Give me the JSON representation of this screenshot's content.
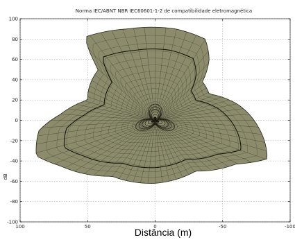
{
  "chart_data": {
    "type": "polar-surface",
    "title": "Norma IEC/ABNT NBR IEC60601-1-2 de compatibilidade eletromagnética",
    "xlabel": "Distância (m)",
    "ylabel": "dB",
    "xlim": [
      100,
      -100
    ],
    "ylim": [
      -100,
      100
    ],
    "xticks": [
      100,
      50,
      0,
      -50,
      -100
    ],
    "xtick_labels": [
      "100",
      "50",
      "0",
      "-50",
      "-100"
    ],
    "yticks": [
      100,
      80,
      60,
      40,
      20,
      0,
      -20,
      -40,
      -60,
      -80,
      -100
    ],
    "ytick_labels": [
      "100",
      "80",
      "60",
      "40",
      "20",
      "0",
      "-20",
      "-40",
      "-60",
      "-80",
      "-100"
    ],
    "grid": true,
    "surface_color": "#8c8c6c",
    "edge_color": "#2a2a1e",
    "outer_boundary": [
      [
        -15,
        90
      ],
      [
        -37,
        80
      ],
      [
        -40,
        60
      ],
      [
        -35,
        38
      ],
      [
        -40,
        26
      ],
      [
        -62,
        15
      ],
      [
        -77,
        -8
      ],
      [
        -83,
        -38
      ],
      [
        -60,
        -43
      ],
      [
        -30,
        -50
      ],
      [
        0,
        -62
      ],
      [
        32,
        -55
      ],
      [
        70,
        -45
      ],
      [
        88,
        -35
      ],
      [
        86,
        -10
      ],
      [
        70,
        6
      ],
      [
        50,
        20
      ],
      [
        42,
        50
      ],
      [
        52,
        82
      ],
      [
        20,
        90
      ]
    ],
    "contour_level": 0.74,
    "center_lobes": 3
  }
}
